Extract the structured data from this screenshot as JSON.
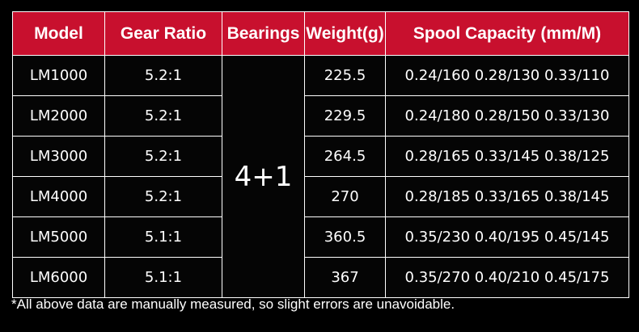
{
  "table": {
    "headers": {
      "model": "Model",
      "gear_ratio": "Gear Ratio",
      "bearings": "Bearings",
      "weight": "Weight(g)",
      "spool": "Spool Capacity (mm/M)"
    },
    "bearings_value": "4+1",
    "rows": [
      {
        "model": "LM1000",
        "gear_ratio": "5.2:1",
        "weight": "225.5",
        "spool": "0.24/160 0.28/130 0.33/110"
      },
      {
        "model": "LM2000",
        "gear_ratio": "5.2:1",
        "weight": "229.5",
        "spool": "0.24/180 0.28/150 0.33/130"
      },
      {
        "model": "LM3000",
        "gear_ratio": "5.2:1",
        "weight": "264.5",
        "spool": "0.28/165 0.33/145 0.38/125"
      },
      {
        "model": "LM4000",
        "gear_ratio": "5.2:1",
        "weight": "270",
        "spool": "0.28/185 0.33/165 0.38/145"
      },
      {
        "model": "LM5000",
        "gear_ratio": "5.1:1",
        "weight": "360.5",
        "spool": "0.35/230 0.40/195 0.45/145"
      },
      {
        "model": "LM6000",
        "gear_ratio": "5.1:1",
        "weight": "367",
        "spool": "0.35/270 0.40/210 0.45/175"
      }
    ]
  },
  "footnote": "*All above data are manually measured, so slight errors are unavoidable.",
  "colors": {
    "header_bg": "#c8102e",
    "body_bg": "#050505",
    "border": "#ffffff",
    "text": "#ffffff"
  }
}
